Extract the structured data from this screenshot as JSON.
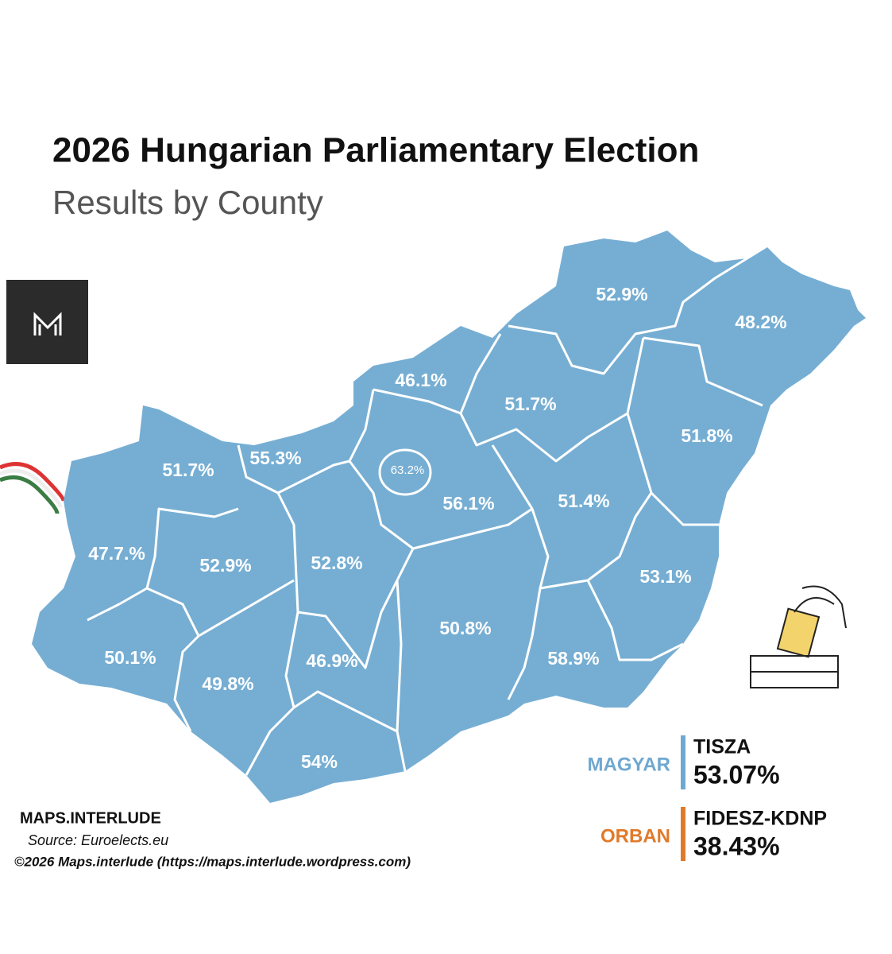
{
  "header": {
    "title": "2026 Hungarian Parliamentary Election",
    "subtitle": "Results by County"
  },
  "map_color": "#76aed3",
  "counties": [
    {
      "label": "52.9%"
    },
    {
      "label": "48.2%"
    },
    {
      "label": "46.1%"
    },
    {
      "label": "51.7%"
    },
    {
      "label": "51.8%"
    },
    {
      "label": "51.7%"
    },
    {
      "label": "55.3%"
    },
    {
      "label": "63.2%"
    },
    {
      "label": "56.1%"
    },
    {
      "label": "51.4%"
    },
    {
      "label": "47.7.%"
    },
    {
      "label": "52.9%"
    },
    {
      "label": "52.8%"
    },
    {
      "label": "53.1%"
    },
    {
      "label": "50.8%"
    },
    {
      "label": "58.9%"
    },
    {
      "label": "50.1%"
    },
    {
      "label": "49.8%"
    },
    {
      "label": "46.9%"
    },
    {
      "label": "54%"
    }
  ],
  "legend": [
    {
      "leader": "MAGYAR",
      "party": "TISZA",
      "share": "53.07%",
      "color": "#6fa8d0"
    },
    {
      "leader": "ORBAN",
      "party": "FIDESZ-KDNP",
      "share": "38.43%",
      "color": "#e07a2a"
    }
  ],
  "footer": {
    "brand": "MAPS.INTERLUDE",
    "source": "Source: Euroelects.eu",
    "copyright": "©2026 Maps.interlude (https://maps.interlude.wordpress.com)"
  }
}
